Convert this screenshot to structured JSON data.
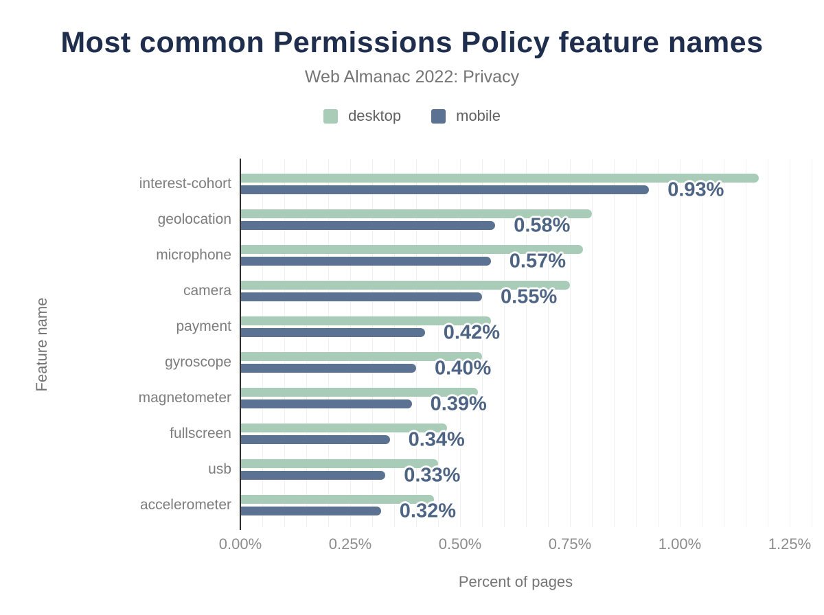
{
  "header": {
    "title": "Most common Permissions Policy feature names",
    "subtitle": "Web Almanac 2022: Privacy"
  },
  "legend": {
    "items": [
      {
        "label": "desktop",
        "color": "#a9ccb9"
      },
      {
        "label": "mobile",
        "color": "#5c7292"
      }
    ]
  },
  "chart_data": {
    "type": "bar",
    "orientation": "horizontal",
    "title": "Most common Permissions Policy feature names",
    "subtitle": "Web Almanac 2022: Privacy",
    "xlabel": "Percent of pages",
    "ylabel": "Feature name",
    "categories": [
      "interest-cohort",
      "geolocation",
      "microphone",
      "camera",
      "payment",
      "gyroscope",
      "magnetometer",
      "fullscreen",
      "usb",
      "accelerometer"
    ],
    "series": [
      {
        "name": "desktop",
        "color": "#a9ccb9",
        "values": [
          1.18,
          0.8,
          0.78,
          0.75,
          0.57,
          0.55,
          0.54,
          0.47,
          0.45,
          0.44
        ]
      },
      {
        "name": "mobile",
        "color": "#5c7292",
        "values": [
          0.93,
          0.58,
          0.57,
          0.55,
          0.42,
          0.4,
          0.39,
          0.34,
          0.33,
          0.32
        ]
      }
    ],
    "bar_labels": [
      "0.93%",
      "0.58%",
      "0.57%",
      "0.55%",
      "0.42%",
      "0.40%",
      "0.39%",
      "0.34%",
      "0.33%",
      "0.32%"
    ],
    "bar_labels_series": "mobile",
    "x_ticks": [
      "0.00%",
      "0.25%",
      "0.50%",
      "0.75%",
      "1.00%",
      "1.25%"
    ],
    "x_tick_values": [
      0,
      0.25,
      0.5,
      0.75,
      1.0,
      1.25
    ],
    "xlim": [
      0,
      1.3
    ],
    "grid": {
      "minor_step": 0.05,
      "color": "#f0f0f0",
      "shown": true
    },
    "legend_position": "top"
  },
  "colors": {
    "title": "#202e4e",
    "subtitle": "#757575",
    "axis_line": "#2e2e2e",
    "tick_label": "#8c8c8c",
    "category_label": "#7d7d7d",
    "value_label": "#4e6484",
    "background": "#ffffff"
  }
}
